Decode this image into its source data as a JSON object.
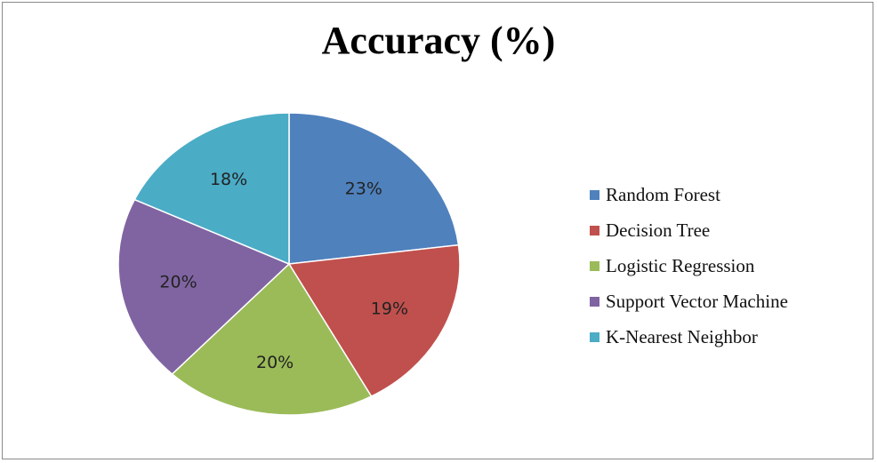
{
  "chart_data": {
    "type": "pie",
    "title": "Accuracy (%)",
    "categories": [
      "Random Forest",
      "Decision Tree",
      "Logistic Regression",
      "Support Vector Machine",
      "K-Nearest Neighbor"
    ],
    "values": [
      23,
      19,
      20,
      20,
      18
    ],
    "data_labels": [
      "23%",
      "19%",
      "20%",
      "20%",
      "18%"
    ],
    "colors": [
      "#4f81bd",
      "#c0504d",
      "#9bbb59",
      "#8064a2",
      "#4bacc6"
    ],
    "legend_position": "right"
  }
}
